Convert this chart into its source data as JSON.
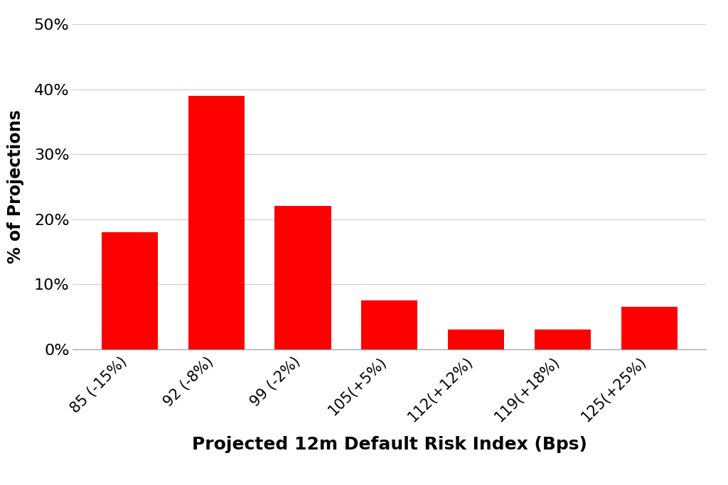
{
  "categories": [
    "85 (-15%)",
    "92 (-8%)",
    "99 (-2%)",
    "105(+5%)",
    "112(+12%)",
    "119(+18%)",
    "125(+25%)"
  ],
  "values": [
    18,
    39,
    22,
    7.5,
    3,
    3,
    6.5
  ],
  "bar_color": "#FF0000",
  "xlabel": "Projected 12m Default Risk Index (Bps)",
  "ylabel": "% of Projections",
  "ylim": [
    0,
    50
  ],
  "yticks": [
    0,
    10,
    20,
    30,
    40,
    50
  ],
  "ytick_labels": [
    "0%",
    "10%",
    "20%",
    "30%",
    "40%",
    "50%"
  ],
  "background_color": "#FFFFFF",
  "xlabel_fontsize": 18,
  "ylabel_fontsize": 17,
  "tick_fontsize": 16,
  "xtick_fontsize": 15,
  "bar_width": 0.65,
  "grid_color": "#CCCCCC",
  "grid_linewidth": 0.8
}
